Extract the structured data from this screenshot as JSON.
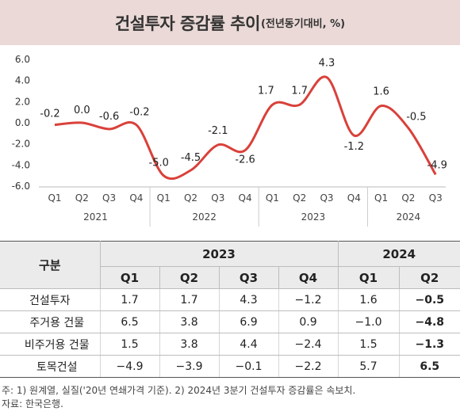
{
  "title": {
    "main": "건설투자 증감률 추이",
    "sub": "(전년동기대비, %)"
  },
  "chart_data": {
    "type": "line",
    "title": "건설투자 증감률 추이(전년동기대비, %)",
    "x": [
      "Q1",
      "Q2",
      "Q3",
      "Q4",
      "Q1",
      "Q2",
      "Q3",
      "Q4",
      "Q1",
      "Q2",
      "Q3",
      "Q4",
      "Q1",
      "Q2",
      "Q3"
    ],
    "year_groups": [
      {
        "label": "2021",
        "count": 4
      },
      {
        "label": "2022",
        "count": 4
      },
      {
        "label": "2023",
        "count": 4
      },
      {
        "label": "2024",
        "count": 3
      }
    ],
    "series": [
      {
        "values": [
          -0.2,
          0.0,
          -0.6,
          -0.2,
          -5.0,
          -4.5,
          -2.1,
          -2.6,
          1.7,
          1.7,
          4.3,
          -1.2,
          1.6,
          -0.5,
          -4.9
        ],
        "labels": [
          "-0.2",
          "0.0",
          "-0.6",
          "-0.2",
          "-5.0",
          "-4.5",
          "-2.1",
          "-2.6",
          "1.7",
          "1.7",
          "4.3",
          "-1.2",
          "1.6",
          "-0.5",
          "-4.9"
        ],
        "color": "#d9413a"
      }
    ],
    "yticks": [
      "6.0",
      "4.0",
      "2.0",
      "0.0",
      "-2.0",
      "-4.0",
      "-6.0"
    ],
    "ylim": [
      -6,
      6
    ],
    "grid": false
  },
  "table": {
    "corner": "구분",
    "years": [
      "2023",
      "2024"
    ],
    "quarters": [
      "Q1",
      "Q2",
      "Q3",
      "Q4",
      "Q1",
      "Q2"
    ],
    "rows": [
      {
        "label": "건설투자",
        "cells": [
          "1.7",
          "1.7",
          "4.3",
          "−1.2",
          "1.6",
          "−0.5"
        ]
      },
      {
        "label": "주거용 건물",
        "cells": [
          "6.5",
          "3.8",
          "6.9",
          "0.9",
          "−1.0",
          "−4.8"
        ]
      },
      {
        "label": "비주거용 건물",
        "cells": [
          "1.5",
          "3.8",
          "4.4",
          "−2.4",
          "1.5",
          "−1.3"
        ]
      },
      {
        "label": "토목건설",
        "cells": [
          "−4.9",
          "−3.9",
          "−0.1",
          "−2.2",
          "5.7",
          "6.5"
        ]
      }
    ]
  },
  "footnote": {
    "line1": "주: 1) 원계열, 실질('20년 연쇄가격 기준).  2) 2024년 3분기 건설투자 증감률은 속보치.",
    "line2": "자료: 한국은행."
  }
}
